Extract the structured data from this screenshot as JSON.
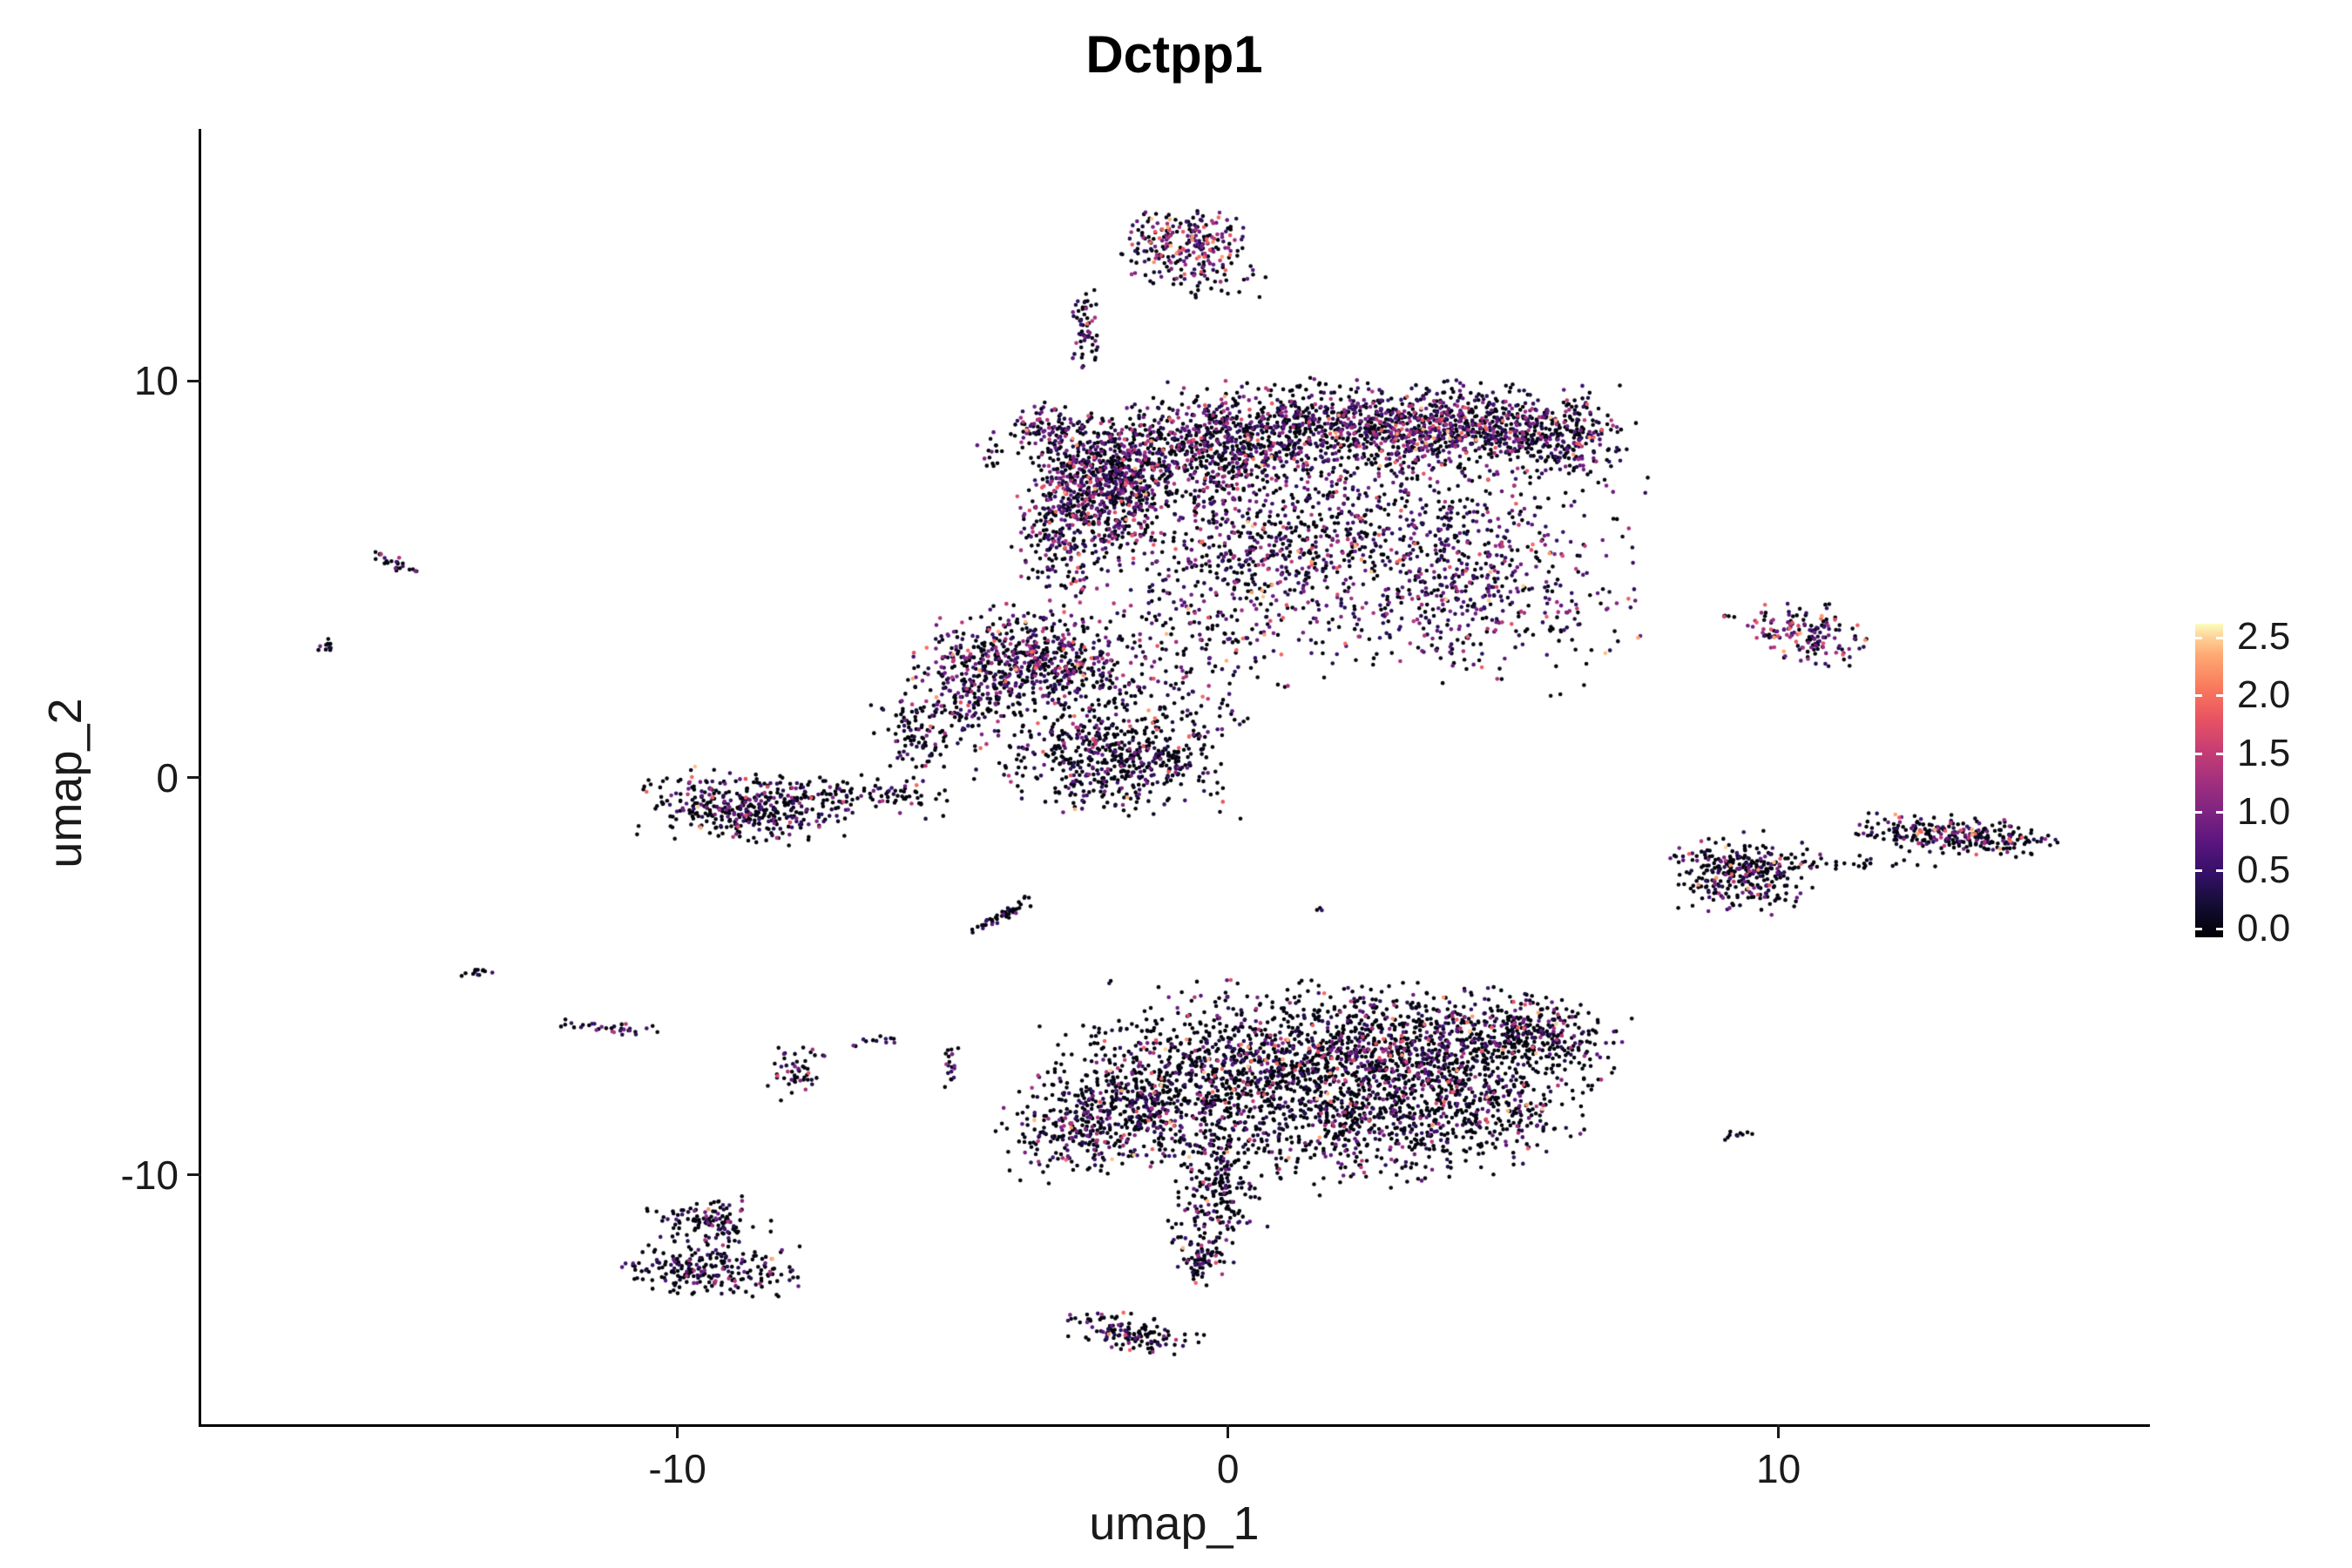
{
  "title": "Dctpp1",
  "x_axis": {
    "label": "umap_1",
    "ticks": [
      -10,
      0,
      10
    ],
    "tick_labels": [
      "-10",
      "0",
      "10"
    ],
    "domain": [
      -18.65,
      16.7
    ]
  },
  "y_axis": {
    "label": "umap_2",
    "ticks": [
      -10,
      0,
      10
    ],
    "tick_labels": [
      "-10",
      "0",
      "10"
    ],
    "domain": [
      -16.28,
      16.3
    ]
  },
  "legend": {
    "labels": [
      "2.5",
      "2.0",
      "1.5",
      "1.0",
      "0.5",
      "0.0"
    ],
    "values": [
      2.5,
      2.0,
      1.5,
      1.0,
      0.5,
      0.0
    ],
    "bar_domain": [
      -0.07,
      2.62
    ]
  },
  "colormap": {
    "name": "magma",
    "vmax": 2.6,
    "stops": [
      [
        0.0,
        "#000004"
      ],
      [
        0.1,
        "#120d31"
      ],
      [
        0.2,
        "#331067"
      ],
      [
        0.3,
        "#59157e"
      ],
      [
        0.4,
        "#7e2482"
      ],
      [
        0.5,
        "#a3307e"
      ],
      [
        0.6,
        "#c83e73"
      ],
      [
        0.7,
        "#e95462"
      ],
      [
        0.8,
        "#f97b5d"
      ],
      [
        0.9,
        "#fea973"
      ],
      [
        0.96,
        "#fdd49b"
      ],
      [
        1.0,
        "#fcfdbf"
      ]
    ]
  },
  "chart_data": {
    "type": "scatter",
    "title": "Dctpp1",
    "xlabel": "umap_1",
    "ylabel": "umap_2",
    "point_radius": 2.3,
    "expression_levels": [
      0.0,
      0.45,
      0.9,
      1.35,
      1.85,
      2.35
    ],
    "expression_presets": {
      "black": [
        0.92,
        0.06,
        0.02,
        0.0,
        0.0,
        0.0
      ],
      "dark": [
        0.7,
        0.14,
        0.09,
        0.04,
        0.02,
        0.01
      ],
      "darkpink": [
        0.66,
        0.15,
        0.09,
        0.05,
        0.03,
        0.02
      ],
      "mixed": [
        0.55,
        0.2,
        0.14,
        0.07,
        0.03,
        0.01
      ],
      "purpleheavy": [
        0.42,
        0.26,
        0.2,
        0.08,
        0.03,
        0.01
      ],
      "hot": [
        0.3,
        0.22,
        0.18,
        0.14,
        0.11,
        0.05
      ]
    },
    "clusters": [
      {
        "name": "top-islet",
        "cx": -0.75,
        "cy": 13.45,
        "sx": 0.6,
        "sy": 0.45,
        "rot": 0,
        "n": 230,
        "expr": "hot"
      },
      {
        "name": "top-islet-fringe",
        "cx": -0.5,
        "cy": 12.6,
        "sx": 0.5,
        "sy": 0.25,
        "rot": 0,
        "n": 40,
        "expr": "dark"
      },
      {
        "name": "upper-streak",
        "cx": -2.55,
        "cy": 11.35,
        "sx": 0.12,
        "sy": 0.5,
        "rot": 0,
        "n": 60,
        "expr": "mixed"
      },
      {
        "name": "knot-west-satellite",
        "cx": -3.35,
        "cy": 8.85,
        "sx": 0.3,
        "sy": 0.3,
        "rot": 0,
        "n": 80,
        "expr": "mixed"
      },
      {
        "name": "knot-west-dots",
        "cx": -4.3,
        "cy": 8.25,
        "sx": 0.12,
        "sy": 0.2,
        "rot": 0,
        "n": 15,
        "expr": "dark"
      },
      {
        "name": "main-knot",
        "cx": -2.35,
        "cy": 7.25,
        "sx": 0.6,
        "sy": 0.85,
        "rot": 0,
        "n": 750,
        "expr": "mixed"
      },
      {
        "name": "main-band-1",
        "cx": -0.6,
        "cy": 8.15,
        "sx": 1.1,
        "sy": 0.65,
        "rot": 5,
        "n": 650,
        "expr": "mixed"
      },
      {
        "name": "main-band-2",
        "cx": 1.9,
        "cy": 8.8,
        "sx": 1.5,
        "sy": 0.55,
        "rot": 0,
        "n": 700,
        "expr": "mixed"
      },
      {
        "name": "main-band-3",
        "cx": 4.3,
        "cy": 8.85,
        "sx": 1.3,
        "sy": 0.5,
        "rot": 0,
        "n": 600,
        "expr": "mixed"
      },
      {
        "name": "main-band-tip",
        "cx": 6.0,
        "cy": 8.5,
        "sx": 0.55,
        "sy": 0.45,
        "rot": 0,
        "n": 200,
        "expr": "mixed"
      },
      {
        "name": "main-fill-sparse",
        "cx": 2.6,
        "cy": 6.1,
        "sx": 2.1,
        "sy": 1.5,
        "rot": 0,
        "n": 850,
        "expr": "purpleheavy"
      },
      {
        "name": "main-fill-lower",
        "cx": 4.6,
        "cy": 4.6,
        "sx": 1.2,
        "sy": 1.1,
        "rot": 0,
        "n": 320,
        "expr": "purpleheavy"
      },
      {
        "name": "main-fill-mid",
        "cx": 0.6,
        "cy": 5.6,
        "sx": 0.9,
        "sy": 0.9,
        "rot": 0,
        "n": 220,
        "expr": "mixed"
      },
      {
        "name": "knot-tail",
        "cx": -3.1,
        "cy": 5.7,
        "sx": 0.35,
        "sy": 0.8,
        "rot": 10,
        "n": 130,
        "expr": "mixed"
      },
      {
        "name": "between-scatter",
        "cx": -0.5,
        "cy": 3.8,
        "sx": 1.0,
        "sy": 1.2,
        "rot": 0,
        "n": 180,
        "expr": "mixed"
      },
      {
        "name": "mid-knot",
        "cx": -3.6,
        "cy": 3.0,
        "sx": 0.85,
        "sy": 0.55,
        "rot": -10,
        "n": 520,
        "expr": "mixed"
      },
      {
        "name": "mid-hook",
        "cx": -4.9,
        "cy": 2.1,
        "sx": 0.4,
        "sy": 0.6,
        "rot": 20,
        "n": 150,
        "expr": "mixed"
      },
      {
        "name": "mid-hook-tail",
        "cx": -5.7,
        "cy": 1.1,
        "sx": 0.3,
        "sy": 0.5,
        "rot": 15,
        "n": 90,
        "expr": "dark"
      },
      {
        "name": "mid-sparse",
        "cx": -2.3,
        "cy": 1.3,
        "sx": 1.2,
        "sy": 1.0,
        "rot": 0,
        "n": 420,
        "expr": "dark"
      },
      {
        "name": "mid-dense-low",
        "cx": -2.0,
        "cy": 0.4,
        "sx": 0.8,
        "sy": 0.5,
        "rot": 0,
        "n": 300,
        "expr": "dark"
      },
      {
        "name": "west-cluster",
        "cx": -8.8,
        "cy": -0.75,
        "sx": 0.8,
        "sy": 0.4,
        "rot": -8,
        "n": 380,
        "expr": "dark"
      },
      {
        "name": "west-trail",
        "cx": -6.7,
        "cy": -0.45,
        "sx": 0.9,
        "sy": 0.22,
        "rot": -5,
        "n": 110,
        "expr": "dark"
      },
      {
        "name": "far-west-streak",
        "cx": -15.15,
        "cy": 5.4,
        "sx": 0.28,
        "sy": 0.08,
        "rot": -35,
        "n": 25,
        "expr": "dark"
      },
      {
        "name": "far-west-dots",
        "cx": -16.35,
        "cy": 3.3,
        "sx": 0.12,
        "sy": 0.1,
        "rot": 0,
        "n": 10,
        "expr": "dark"
      },
      {
        "name": "diag-streak",
        "cx": -4.1,
        "cy": -3.45,
        "sx": 0.4,
        "sy": 0.07,
        "rot": 40,
        "n": 45,
        "expr": "black"
      },
      {
        "name": "lone-dot",
        "cx": 1.7,
        "cy": -3.3,
        "sx": 0.06,
        "sy": 0.05,
        "rot": 0,
        "n": 3,
        "expr": "black"
      },
      {
        "name": "sw-dash",
        "cx": -13.7,
        "cy": -4.9,
        "sx": 0.18,
        "sy": 0.05,
        "rot": 15,
        "n": 12,
        "expr": "black"
      },
      {
        "name": "sw-streak",
        "cx": -11.2,
        "cy": -6.3,
        "sx": 0.5,
        "sy": 0.08,
        "rot": -8,
        "n": 32,
        "expr": "mixed"
      },
      {
        "name": "sw-blob",
        "cx": -7.85,
        "cy": -7.4,
        "sx": 0.28,
        "sy": 0.33,
        "rot": 0,
        "n": 50,
        "expr": "darkpink"
      },
      {
        "name": "sw-dots",
        "cx": -6.35,
        "cy": -6.6,
        "sx": 0.25,
        "sy": 0.1,
        "rot": 0,
        "n": 12,
        "expr": "dark"
      },
      {
        "name": "sw-vert-dash",
        "cx": -5.0,
        "cy": -7.25,
        "sx": 0.08,
        "sy": 0.3,
        "rot": 0,
        "n": 18,
        "expr": "mixed"
      },
      {
        "name": "bottom-core",
        "cx": 1.2,
        "cy": -7.2,
        "sx": 1.6,
        "sy": 0.9,
        "rot": 0,
        "n": 1150,
        "expr": "dark"
      },
      {
        "name": "bottom-east",
        "cx": 3.8,
        "cy": -6.8,
        "sx": 1.3,
        "sy": 0.7,
        "rot": 0,
        "n": 600,
        "expr": "dark"
      },
      {
        "name": "bottom-east-tip",
        "cx": 5.6,
        "cy": -6.5,
        "sx": 0.7,
        "sy": 0.45,
        "rot": -15,
        "n": 250,
        "expr": "dark"
      },
      {
        "name": "bottom-west",
        "cx": -1.2,
        "cy": -8.0,
        "sx": 1.1,
        "sy": 0.8,
        "rot": 0,
        "n": 500,
        "expr": "dark"
      },
      {
        "name": "bottom-west-lobe",
        "cx": -2.6,
        "cy": -8.8,
        "sx": 0.7,
        "sy": 0.55,
        "rot": 20,
        "n": 260,
        "expr": "dark"
      },
      {
        "name": "bottom-underband",
        "cx": 2.5,
        "cy": -8.9,
        "sx": 1.5,
        "sy": 0.65,
        "rot": 5,
        "n": 480,
        "expr": "dark"
      },
      {
        "name": "bottom-under-east",
        "cx": 4.8,
        "cy": -8.3,
        "sx": 0.8,
        "sy": 0.5,
        "rot": -10,
        "n": 200,
        "expr": "dark"
      },
      {
        "name": "bottom-tail-1",
        "cx": -0.15,
        "cy": -10.3,
        "sx": 0.35,
        "sy": 0.7,
        "rot": 5,
        "n": 170,
        "expr": "dark"
      },
      {
        "name": "bottom-tail-2",
        "cx": -0.5,
        "cy": -11.8,
        "sx": 0.25,
        "sy": 0.6,
        "rot": 5,
        "n": 110,
        "expr": "dark"
      },
      {
        "name": "bottom-tip",
        "cx": -1.75,
        "cy": -14.0,
        "sx": 0.55,
        "sy": 0.22,
        "rot": -15,
        "n": 130,
        "expr": "dark"
      },
      {
        "name": "sw-corner-upper",
        "cx": -9.4,
        "cy": -11.2,
        "sx": 0.5,
        "sy": 0.28,
        "rot": 0,
        "n": 120,
        "expr": "dark"
      },
      {
        "name": "sw-corner-lower",
        "cx": -9.4,
        "cy": -12.4,
        "sx": 0.75,
        "sy": 0.3,
        "rot": 0,
        "n": 220,
        "expr": "dark"
      },
      {
        "name": "east-islet",
        "cx": 10.55,
        "cy": 3.6,
        "sx": 0.5,
        "sy": 0.35,
        "rot": -10,
        "n": 150,
        "expr": "hot"
      },
      {
        "name": "east-islet-dots",
        "cx": 9.1,
        "cy": 4.05,
        "sx": 0.1,
        "sy": 0.06,
        "rot": 0,
        "n": 5,
        "expr": "dark"
      },
      {
        "name": "east-cluster",
        "cx": 9.35,
        "cy": -2.4,
        "sx": 0.55,
        "sy": 0.45,
        "rot": 0,
        "n": 300,
        "expr": "darkpink"
      },
      {
        "name": "east-chain",
        "cx": 10.9,
        "cy": -2.15,
        "sx": 0.85,
        "sy": 0.1,
        "rot": -3,
        "n": 40,
        "expr": "dark"
      },
      {
        "name": "east-bar",
        "cx": 13.2,
        "cy": -1.45,
        "sx": 0.8,
        "sy": 0.22,
        "rot": -5,
        "n": 270,
        "expr": "darkpink"
      },
      {
        "name": "east-dash",
        "cx": 9.3,
        "cy": -9.0,
        "sx": 0.2,
        "sy": 0.06,
        "rot": 10,
        "n": 10,
        "expr": "black"
      }
    ]
  }
}
